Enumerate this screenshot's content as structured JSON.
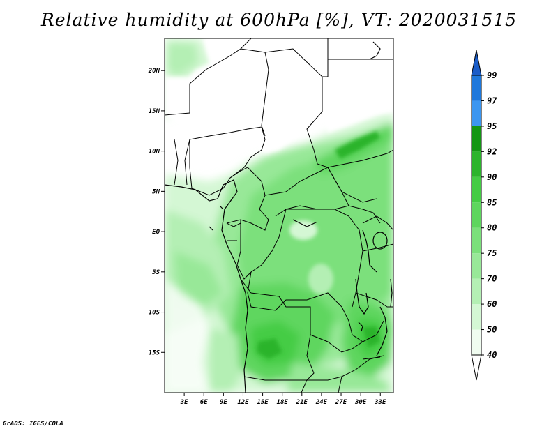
{
  "title": "Relative humidity at 600hPa [%], VT: 2020031515",
  "credit": "GrADS: IGES/COLA",
  "map": {
    "lat_range": [
      -20,
      24
    ],
    "lon_range": [
      0,
      35
    ],
    "lat_ticks": [
      "20N",
      "15N",
      "10N",
      "5N",
      "EQ",
      "5S",
      "10S",
      "15S"
    ],
    "lon_ticks": [
      "3E",
      "6E",
      "9E",
      "12E",
      "15E",
      "18E",
      "21E",
      "24E",
      "27E",
      "30E",
      "33E"
    ]
  },
  "colorbar": {
    "levels": [
      "40",
      "50",
      "60",
      "70",
      "75",
      "80",
      "85",
      "90",
      "92",
      "95",
      "97",
      "99"
    ],
    "colors": [
      "#f0fcf0",
      "#d4f7d4",
      "#b4efb4",
      "#98e898",
      "#7be07b",
      "#5ed65e",
      "#44cc44",
      "#2cb42c",
      "#149614",
      "#3c96f0",
      "#1e78dc",
      "#1a5cc8"
    ]
  },
  "colors": {
    "land_outline": "#000000",
    "background": "#ffffff"
  }
}
